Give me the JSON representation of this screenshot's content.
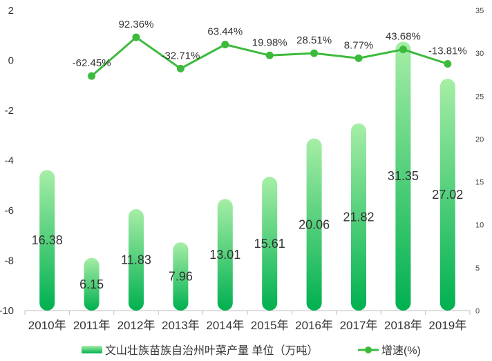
{
  "chart_data": {
    "type": "bar+line",
    "categories": [
      "2010年",
      "2011年",
      "2012年",
      "2013年",
      "2014年",
      "2015年",
      "2016年",
      "2017年",
      "2018年",
      "2019年"
    ],
    "series": [
      {
        "name": "文山壮族苗族自治州叶菜产量 单位（万吨）",
        "type": "bar",
        "axis": "right",
        "values": [
          16.38,
          6.15,
          11.83,
          7.96,
          13.01,
          15.61,
          20.06,
          21.82,
          31.35,
          27.02
        ],
        "labels": [
          "16.38",
          "6.15",
          "11.83",
          "7.96",
          "13.01",
          "15.61",
          "20.06",
          "21.82",
          "31.35",
          "27.02"
        ]
      },
      {
        "name": "增速(%)",
        "type": "line",
        "axis": "left",
        "values": [
          null,
          -0.6245,
          0.9236,
          -0.3271,
          0.6344,
          0.1998,
          0.2851,
          0.0877,
          0.4368,
          -0.1381
        ],
        "labels": [
          "",
          "-62.45%",
          "92.36%",
          "-32.71%",
          "63.44%",
          "19.98%",
          "28.51%",
          "8.77%",
          "43.68%",
          "-13.81%"
        ]
      }
    ],
    "y_left": {
      "ticks": [
        "2",
        "0",
        "-2",
        "-4",
        "-6",
        "-8",
        "-10"
      ],
      "ylim": [
        -10,
        2
      ]
    },
    "y_right": {
      "ticks": [
        "35",
        "30",
        "25",
        "20",
        "15",
        "10",
        "5",
        "0"
      ],
      "ylim": [
        0,
        35
      ]
    },
    "colors": {
      "bar_light": "#a6eea6",
      "bar_dark": "#00b050",
      "line": "#3cba3c"
    },
    "legend": {
      "position": "bottom"
    }
  }
}
